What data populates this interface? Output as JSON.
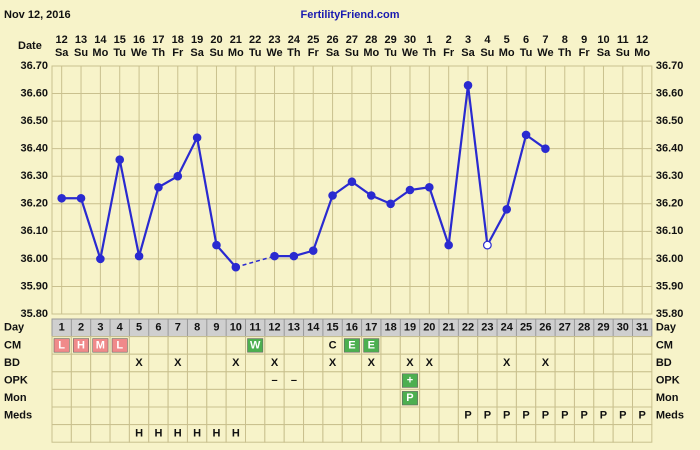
{
  "chart_data": {
    "type": "line",
    "header_left": "Nov 12, 2016",
    "title": "FertilityFriend.com",
    "date_label": "Date",
    "dates": [
      "12",
      "13",
      "14",
      "15",
      "16",
      "17",
      "18",
      "19",
      "20",
      "21",
      "22",
      "23",
      "24",
      "25",
      "26",
      "27",
      "28",
      "29",
      "30",
      "1",
      "2",
      "3",
      "4",
      "5",
      "6",
      "7",
      "8",
      "9",
      "10",
      "11",
      "12"
    ],
    "weekdays": [
      "Sa",
      "Su",
      "Mo",
      "Tu",
      "We",
      "Th",
      "Fr",
      "Sa",
      "Su",
      "Mo",
      "Tu",
      "We",
      "Th",
      "Fr",
      "Sa",
      "Su",
      "Mo",
      "Tu",
      "We",
      "Th",
      "Fr",
      "Sa",
      "Su",
      "Mo",
      "Tu",
      "We",
      "Th",
      "Fr",
      "Sa",
      "Su",
      "Mo"
    ],
    "day_label": "Day",
    "categories": [
      "1",
      "2",
      "3",
      "4",
      "5",
      "6",
      "7",
      "8",
      "9",
      "10",
      "11",
      "12",
      "13",
      "14",
      "15",
      "16",
      "17",
      "18",
      "19",
      "20",
      "21",
      "22",
      "23",
      "24",
      "25",
      "26",
      "27",
      "28",
      "29",
      "30",
      "31"
    ],
    "values": [
      36.22,
      36.22,
      36.0,
      36.36,
      36.01,
      36.26,
      36.3,
      36.44,
      36.05,
      35.97,
      null,
      36.01,
      36.01,
      36.03,
      36.23,
      36.28,
      36.23,
      36.2,
      36.25,
      36.26,
      36.05,
      36.63,
      36.05,
      36.18,
      36.45,
      36.4,
      null,
      null,
      null,
      null,
      null
    ],
    "open_points": [
      22
    ],
    "color": "#2a2ad0",
    "ylim": [
      35.8,
      36.7
    ],
    "yticks": [
      {
        "value": 35.8,
        "label": "35.80"
      },
      {
        "value": 35.9,
        "label": "35.90"
      },
      {
        "value": 36.0,
        "label": "36.00"
      },
      {
        "value": 36.1,
        "label": "36.10"
      },
      {
        "value": 36.2,
        "label": "36.20"
      },
      {
        "value": 36.3,
        "label": "36.30"
      },
      {
        "value": 36.4,
        "label": "36.40"
      },
      {
        "value": 36.5,
        "label": "36.50"
      },
      {
        "value": 36.6,
        "label": "36.60"
      },
      {
        "value": 36.7,
        "label": "36.70"
      }
    ],
    "grid": true,
    "rows": [
      {
        "label": "CM",
        "cells": [
          "L",
          "H",
          "M",
          "L",
          null,
          null,
          null,
          null,
          null,
          null,
          "W",
          null,
          null,
          null,
          "C",
          "E",
          "E",
          null,
          null,
          null,
          null,
          null,
          null,
          null,
          null,
          null,
          null,
          null,
          null,
          null,
          null
        ],
        "fills": [
          "#f08a8a",
          "#f08a8a",
          "#f08a8a",
          "#f08a8a",
          null,
          null,
          null,
          null,
          null,
          null,
          "#4caf50",
          null,
          null,
          null,
          null,
          "#4caf50",
          "#4caf50",
          null,
          null,
          null,
          null,
          null,
          null,
          null,
          null,
          null,
          null,
          null,
          null,
          null,
          null
        ]
      },
      {
        "label": "BD",
        "cells": [
          null,
          null,
          null,
          null,
          "X",
          null,
          "X",
          null,
          null,
          "X",
          null,
          "X",
          null,
          null,
          "X",
          null,
          "X",
          null,
          "X",
          "X",
          null,
          null,
          null,
          "X",
          null,
          "X",
          null,
          null,
          null,
          null,
          null
        ]
      },
      {
        "label": "OPK",
        "cells": [
          null,
          null,
          null,
          null,
          null,
          null,
          null,
          null,
          null,
          null,
          null,
          "–",
          "–",
          null,
          null,
          null,
          null,
          null,
          "+",
          null,
          null,
          null,
          null,
          null,
          null,
          null,
          null,
          null,
          null,
          null,
          null
        ],
        "fills": [
          null,
          null,
          null,
          null,
          null,
          null,
          null,
          null,
          null,
          null,
          null,
          null,
          null,
          null,
          null,
          null,
          null,
          null,
          "#4caf50",
          null,
          null,
          null,
          null,
          null,
          null,
          null,
          null,
          null,
          null,
          null,
          null
        ]
      },
      {
        "label": "Mon",
        "cells": [
          null,
          null,
          null,
          null,
          null,
          null,
          null,
          null,
          null,
          null,
          null,
          null,
          null,
          null,
          null,
          null,
          null,
          null,
          "P",
          null,
          null,
          null,
          null,
          null,
          null,
          null,
          null,
          null,
          null,
          null,
          null
        ],
        "fills": [
          null,
          null,
          null,
          null,
          null,
          null,
          null,
          null,
          null,
          null,
          null,
          null,
          null,
          null,
          null,
          null,
          null,
          null,
          "#4caf50",
          null,
          null,
          null,
          null,
          null,
          null,
          null,
          null,
          null,
          null,
          null,
          null
        ]
      },
      {
        "label": "Meds",
        "cells": [
          null,
          null,
          null,
          null,
          null,
          null,
          null,
          null,
          null,
          null,
          null,
          null,
          null,
          null,
          null,
          null,
          null,
          null,
          null,
          null,
          null,
          "P",
          "P",
          "P",
          "P",
          "P",
          "P",
          "P",
          "P",
          "P",
          "P"
        ]
      },
      {
        "cells": [
          null,
          null,
          null,
          null,
          "H",
          "H",
          "H",
          "H",
          "H",
          "H",
          null,
          null,
          null,
          null,
          null,
          null,
          null,
          null,
          null,
          null,
          null,
          null,
          null,
          null,
          null,
          null,
          null,
          null,
          null,
          null,
          null
        ]
      }
    ]
  }
}
